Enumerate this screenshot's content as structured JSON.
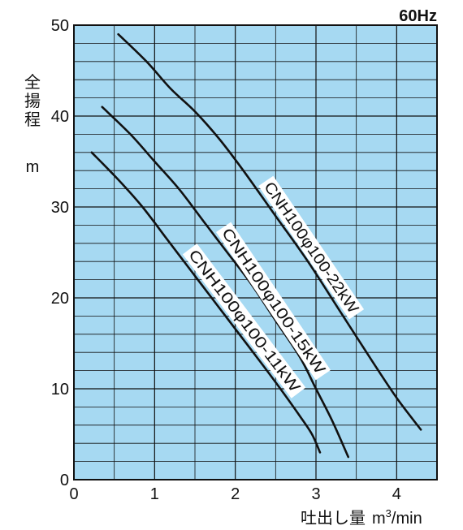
{
  "chart_data": {
    "type": "line",
    "frequency_label": "60Hz",
    "ylabel": "全揚程",
    "yunit": "m",
    "xlabel": "吐出し量",
    "xunit_base": "m",
    "xunit_sup": "3",
    "xunit_tail": "/min",
    "xlim": [
      0,
      4.5
    ],
    "ylim": [
      0,
      50
    ],
    "xticks": [
      0,
      1,
      2,
      3,
      4
    ],
    "yticks": [
      0,
      10,
      20,
      30,
      40,
      50
    ],
    "grid": true,
    "background_color": "#a6d9f2",
    "line_color": "#111111",
    "series": [
      {
        "name": "CNH100φ100-22kW",
        "x": [
          0.55,
          0.9,
          1.2,
          1.5,
          1.8,
          2.1,
          2.5,
          2.9,
          3.3,
          3.7,
          4.0,
          4.3
        ],
        "y": [
          49,
          46,
          43,
          40.5,
          37.5,
          34,
          29,
          24,
          18.5,
          13,
          9,
          5.5
        ]
      },
      {
        "name": "CNH100φ100-15kW",
        "x": [
          0.35,
          0.7,
          1.0,
          1.3,
          1.6,
          1.9,
          2.2,
          2.5,
          2.8,
          3.0,
          3.2,
          3.4
        ],
        "y": [
          41,
          38,
          35,
          32,
          28.5,
          25,
          21.5,
          17.5,
          13.5,
          10,
          6.5,
          2.5
        ]
      },
      {
        "name": "CNH100φ100-11kW",
        "x": [
          0.22,
          0.55,
          0.85,
          1.15,
          1.45,
          1.75,
          2.05,
          2.35,
          2.6,
          2.8,
          2.95,
          3.05
        ],
        "y": [
          36,
          33,
          30,
          26.5,
          23,
          19.5,
          16,
          12.5,
          9.5,
          7,
          5,
          3
        ]
      }
    ]
  }
}
